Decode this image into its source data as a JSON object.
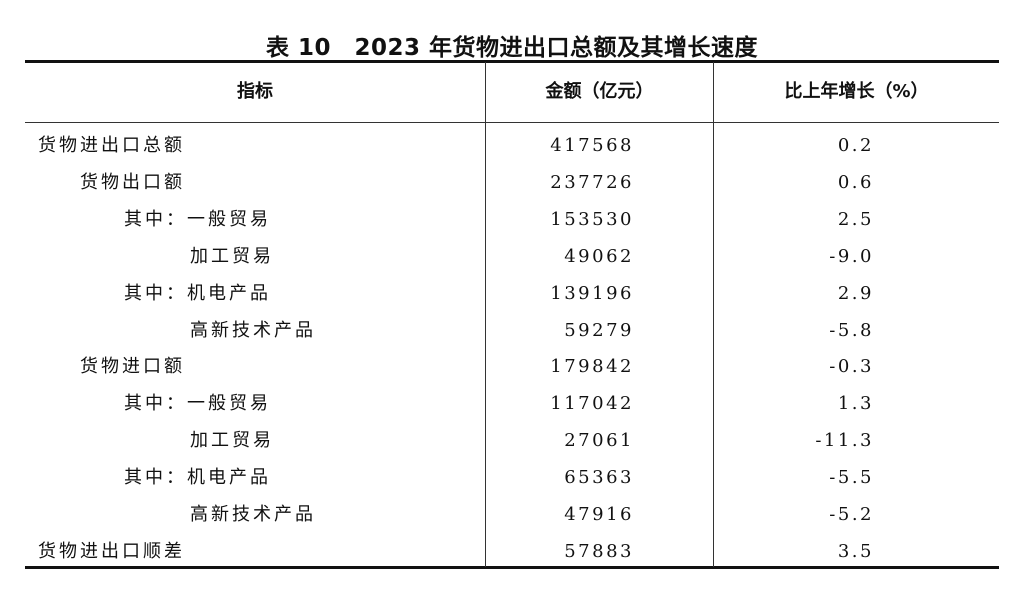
{
  "title": "表 10　2023 年货物进出口总额及其增长速度",
  "headers": [
    "指标",
    "金额（亿元）",
    "比上年增长（%）"
  ],
  "rows": [
    {
      "label": "货物进出口总额",
      "level": 0,
      "amount": "417568",
      "growth": "0.2"
    },
    {
      "label": "货物出口额",
      "level": 1,
      "amount": "237726",
      "growth": "0.6"
    },
    {
      "label": "其中：一般贸易",
      "level": 2,
      "amount": "153530",
      "growth": "2.5"
    },
    {
      "label": "加工贸易",
      "level": 3,
      "amount": "49062",
      "growth": "-9.0"
    },
    {
      "label": "其中：机电产品",
      "level": 2,
      "amount": "139196",
      "growth": "2.9"
    },
    {
      "label": "高新技术产品",
      "level": 3,
      "amount": "59279",
      "growth": "-5.8"
    },
    {
      "label": "货物进口额",
      "level": 1,
      "amount": "179842",
      "growth": "-0.3"
    },
    {
      "label": "其中：一般贸易",
      "level": 2,
      "amount": "117042",
      "growth": "1.3"
    },
    {
      "label": "加工贸易",
      "level": 3,
      "amount": "27061",
      "growth": "-11.3"
    },
    {
      "label": "其中：机电产品",
      "level": 2,
      "amount": "65363",
      "growth": "-5.5"
    },
    {
      "label": "高新技术产品",
      "level": 3,
      "amount": "47916",
      "growth": "-5.2"
    },
    {
      "label": "货物进出口顺差",
      "level": 0,
      "amount": "57883",
      "growth": "3.5"
    }
  ]
}
